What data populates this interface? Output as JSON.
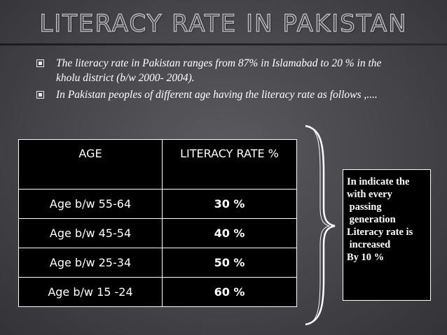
{
  "slide": {
    "title": "LITERACY RATE IN PAKISTAN",
    "bullets": [
      "The literacy rate in Pakistan ranges from 87% in Islamabad to 20 % in the kholu district (b/w 2000- 2004).",
      "In Pakistan peoples of different age having the literacy rate as follows ,...."
    ],
    "table": {
      "headers": [
        "AGE",
        "LITERACY RATE %"
      ],
      "rows": [
        {
          "age": "Age b/w 55-64",
          "rate": "30 %"
        },
        {
          "age": "Age b/w 45-54",
          "rate": "40 %"
        },
        {
          "age": "Age b/w 25-34",
          "rate": "50 %"
        },
        {
          "age": "Age b/w 15 -24",
          "rate": "60 %"
        }
      ]
    },
    "note": "In indicate the\nwith every\n passing\n generation\nLiteracy rate is\n increased\nBy 10 %"
  },
  "colors": {
    "background": "#4a4a4f",
    "text": "#ffffff",
    "table_bg": "#000000"
  }
}
